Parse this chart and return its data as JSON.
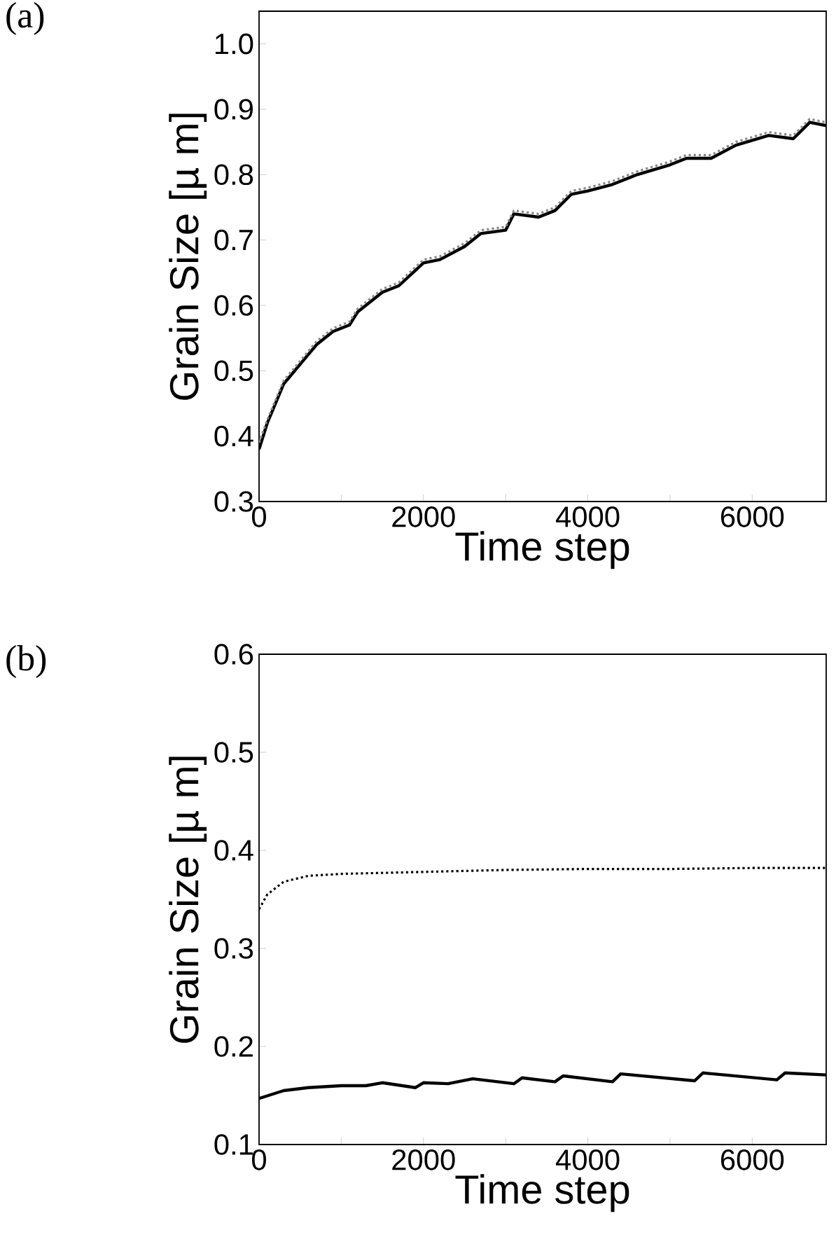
{
  "chart_data": [
    {
      "type": "line",
      "title": "(a)",
      "xlabel": "Time step",
      "ylabel": "Grain Size [µ m]",
      "xlim": [
        0,
        6900
      ],
      "ylim": [
        0.3,
        1.05
      ],
      "xticks": [
        0,
        {
          "value": 1000,
          "label": null
        },
        2000,
        {
          "value": 3000,
          "label": null
        },
        4000,
        {
          "value": 5000,
          "label": null
        },
        6000
      ],
      "yticks": [
        0.3,
        0.4,
        0.5,
        0.6,
        0.7,
        0.8,
        0.9,
        {
          "value": 1,
          "label": "1.0"
        }
      ],
      "marker": "none",
      "x": [
        0,
        100,
        300,
        500,
        700,
        900,
        1100,
        1200,
        1500,
        1700,
        2000,
        2200,
        2500,
        2700,
        3000,
        3100,
        3400,
        3600,
        3800,
        4000,
        4300,
        4600,
        5000,
        5200,
        5500,
        5800,
        6200,
        6500,
        6700,
        6900
      ],
      "series": [
        {
          "color": "#000000",
          "line_style": "solid",
          "values": [
            0.38,
            0.42,
            0.48,
            0.51,
            0.54,
            0.56,
            0.57,
            0.59,
            0.62,
            0.63,
            0.665,
            0.67,
            0.69,
            0.71,
            0.715,
            0.74,
            0.735,
            0.745,
            0.77,
            0.775,
            0.785,
            0.8,
            0.815,
            0.825,
            0.825,
            0.845,
            0.86,
            0.855,
            0.88,
            0.875
          ]
        },
        {
          "color": "#888888",
          "line_style": "dotted",
          "values": [
            0.39,
            0.425,
            0.485,
            0.515,
            0.545,
            0.565,
            0.575,
            0.595,
            0.625,
            0.635,
            0.67,
            0.675,
            0.695,
            0.715,
            0.72,
            0.745,
            0.74,
            0.75,
            0.775,
            0.78,
            0.79,
            0.805,
            0.82,
            0.83,
            0.83,
            0.85,
            0.865,
            0.86,
            0.885,
            0.88
          ]
        }
      ]
    },
    {
      "type": "line",
      "title": "(b)",
      "xlabel": "Time step",
      "ylabel": "Grain Size [µ m]",
      "xlim": [
        0,
        6900
      ],
      "ylim": [
        0.1,
        0.6
      ],
      "xticks": [
        0,
        {
          "value": 1000,
          "label": null
        },
        2000,
        {
          "value": 3000,
          "label": null
        },
        4000,
        {
          "value": 5000,
          "label": null
        },
        6000
      ],
      "yticks": [
        0.1,
        0.2,
        0.3,
        0.4,
        0.5,
        0.6
      ],
      "marker": "none",
      "series": [
        {
          "color": "#000000",
          "line_style": "solid",
          "x": [
            0,
            300,
            600,
            1000,
            1300,
            1500,
            1900,
            2000,
            2300,
            2600,
            3100,
            3200,
            3600,
            3700,
            4300,
            4400,
            5300,
            5400,
            6300,
            6400,
            6900
          ],
          "values": [
            0.147,
            0.155,
            0.158,
            0.16,
            0.16,
            0.163,
            0.158,
            0.163,
            0.162,
            0.167,
            0.162,
            0.168,
            0.164,
            0.17,
            0.164,
            0.172,
            0.165,
            0.173,
            0.166,
            0.173,
            0.171
          ]
        },
        {
          "color": "#000000",
          "line_style": "dotted",
          "x": [
            0,
            100,
            300,
            600,
            1000,
            2000,
            3000,
            4000,
            5000,
            6000,
            6900
          ],
          "values": [
            0.34,
            0.355,
            0.368,
            0.374,
            0.376,
            0.378,
            0.38,
            0.381,
            0.381,
            0.382,
            0.382
          ]
        }
      ]
    }
  ]
}
